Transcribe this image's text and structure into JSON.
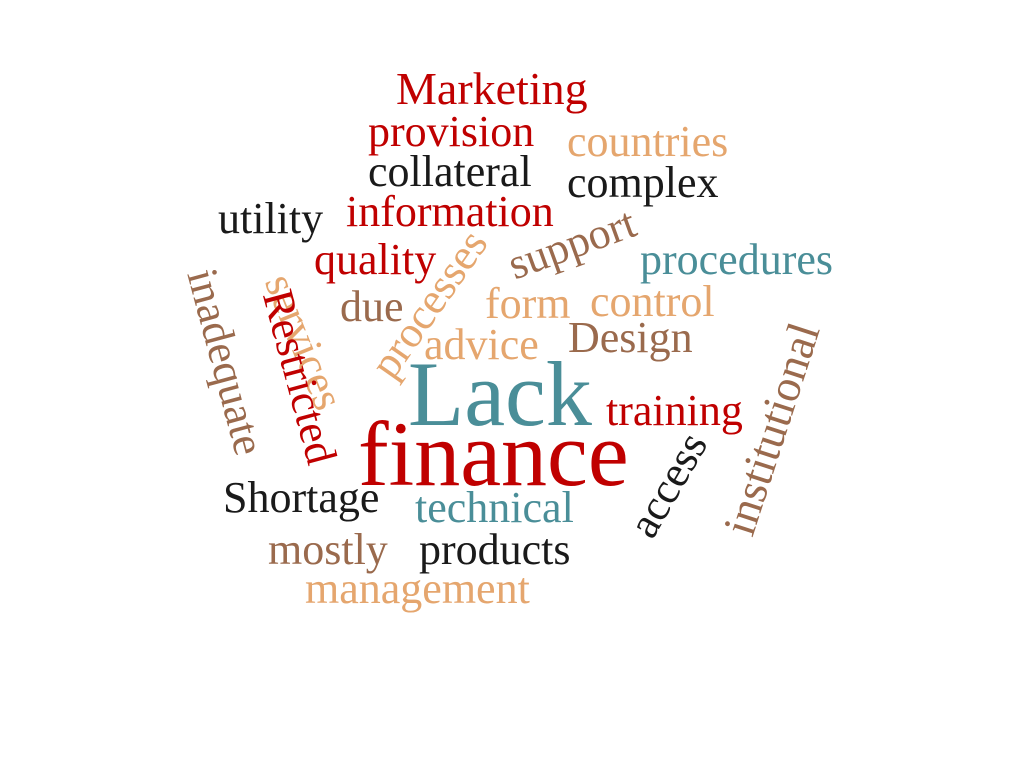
{
  "word_cloud": {
    "colors": {
      "red": "#c00000",
      "tan": "#e5a66e",
      "teal": "#4a8e98",
      "brown": "#9a6a4d",
      "black": "#1a1a1a"
    },
    "words": {
      "marketing": "Marketing",
      "provision": "provision",
      "countries": "countries",
      "collateral": "collateral",
      "complex": "complex",
      "information": "information",
      "utility": "utility",
      "quality": "quality",
      "support": "support",
      "procedures": "procedures",
      "services": "services",
      "processes": "processes",
      "due": "due",
      "form": "form",
      "control": "control",
      "inadequate": "inadequate",
      "restricted": "Restricted",
      "advice": "advice",
      "design": "Design",
      "institutional": "institutional",
      "lack": "Lack",
      "training": "training",
      "finance": "finance",
      "access": "access",
      "shortage": "Shortage",
      "technical": "technical",
      "mostly": "mostly",
      "products": "products",
      "management": "management"
    }
  }
}
